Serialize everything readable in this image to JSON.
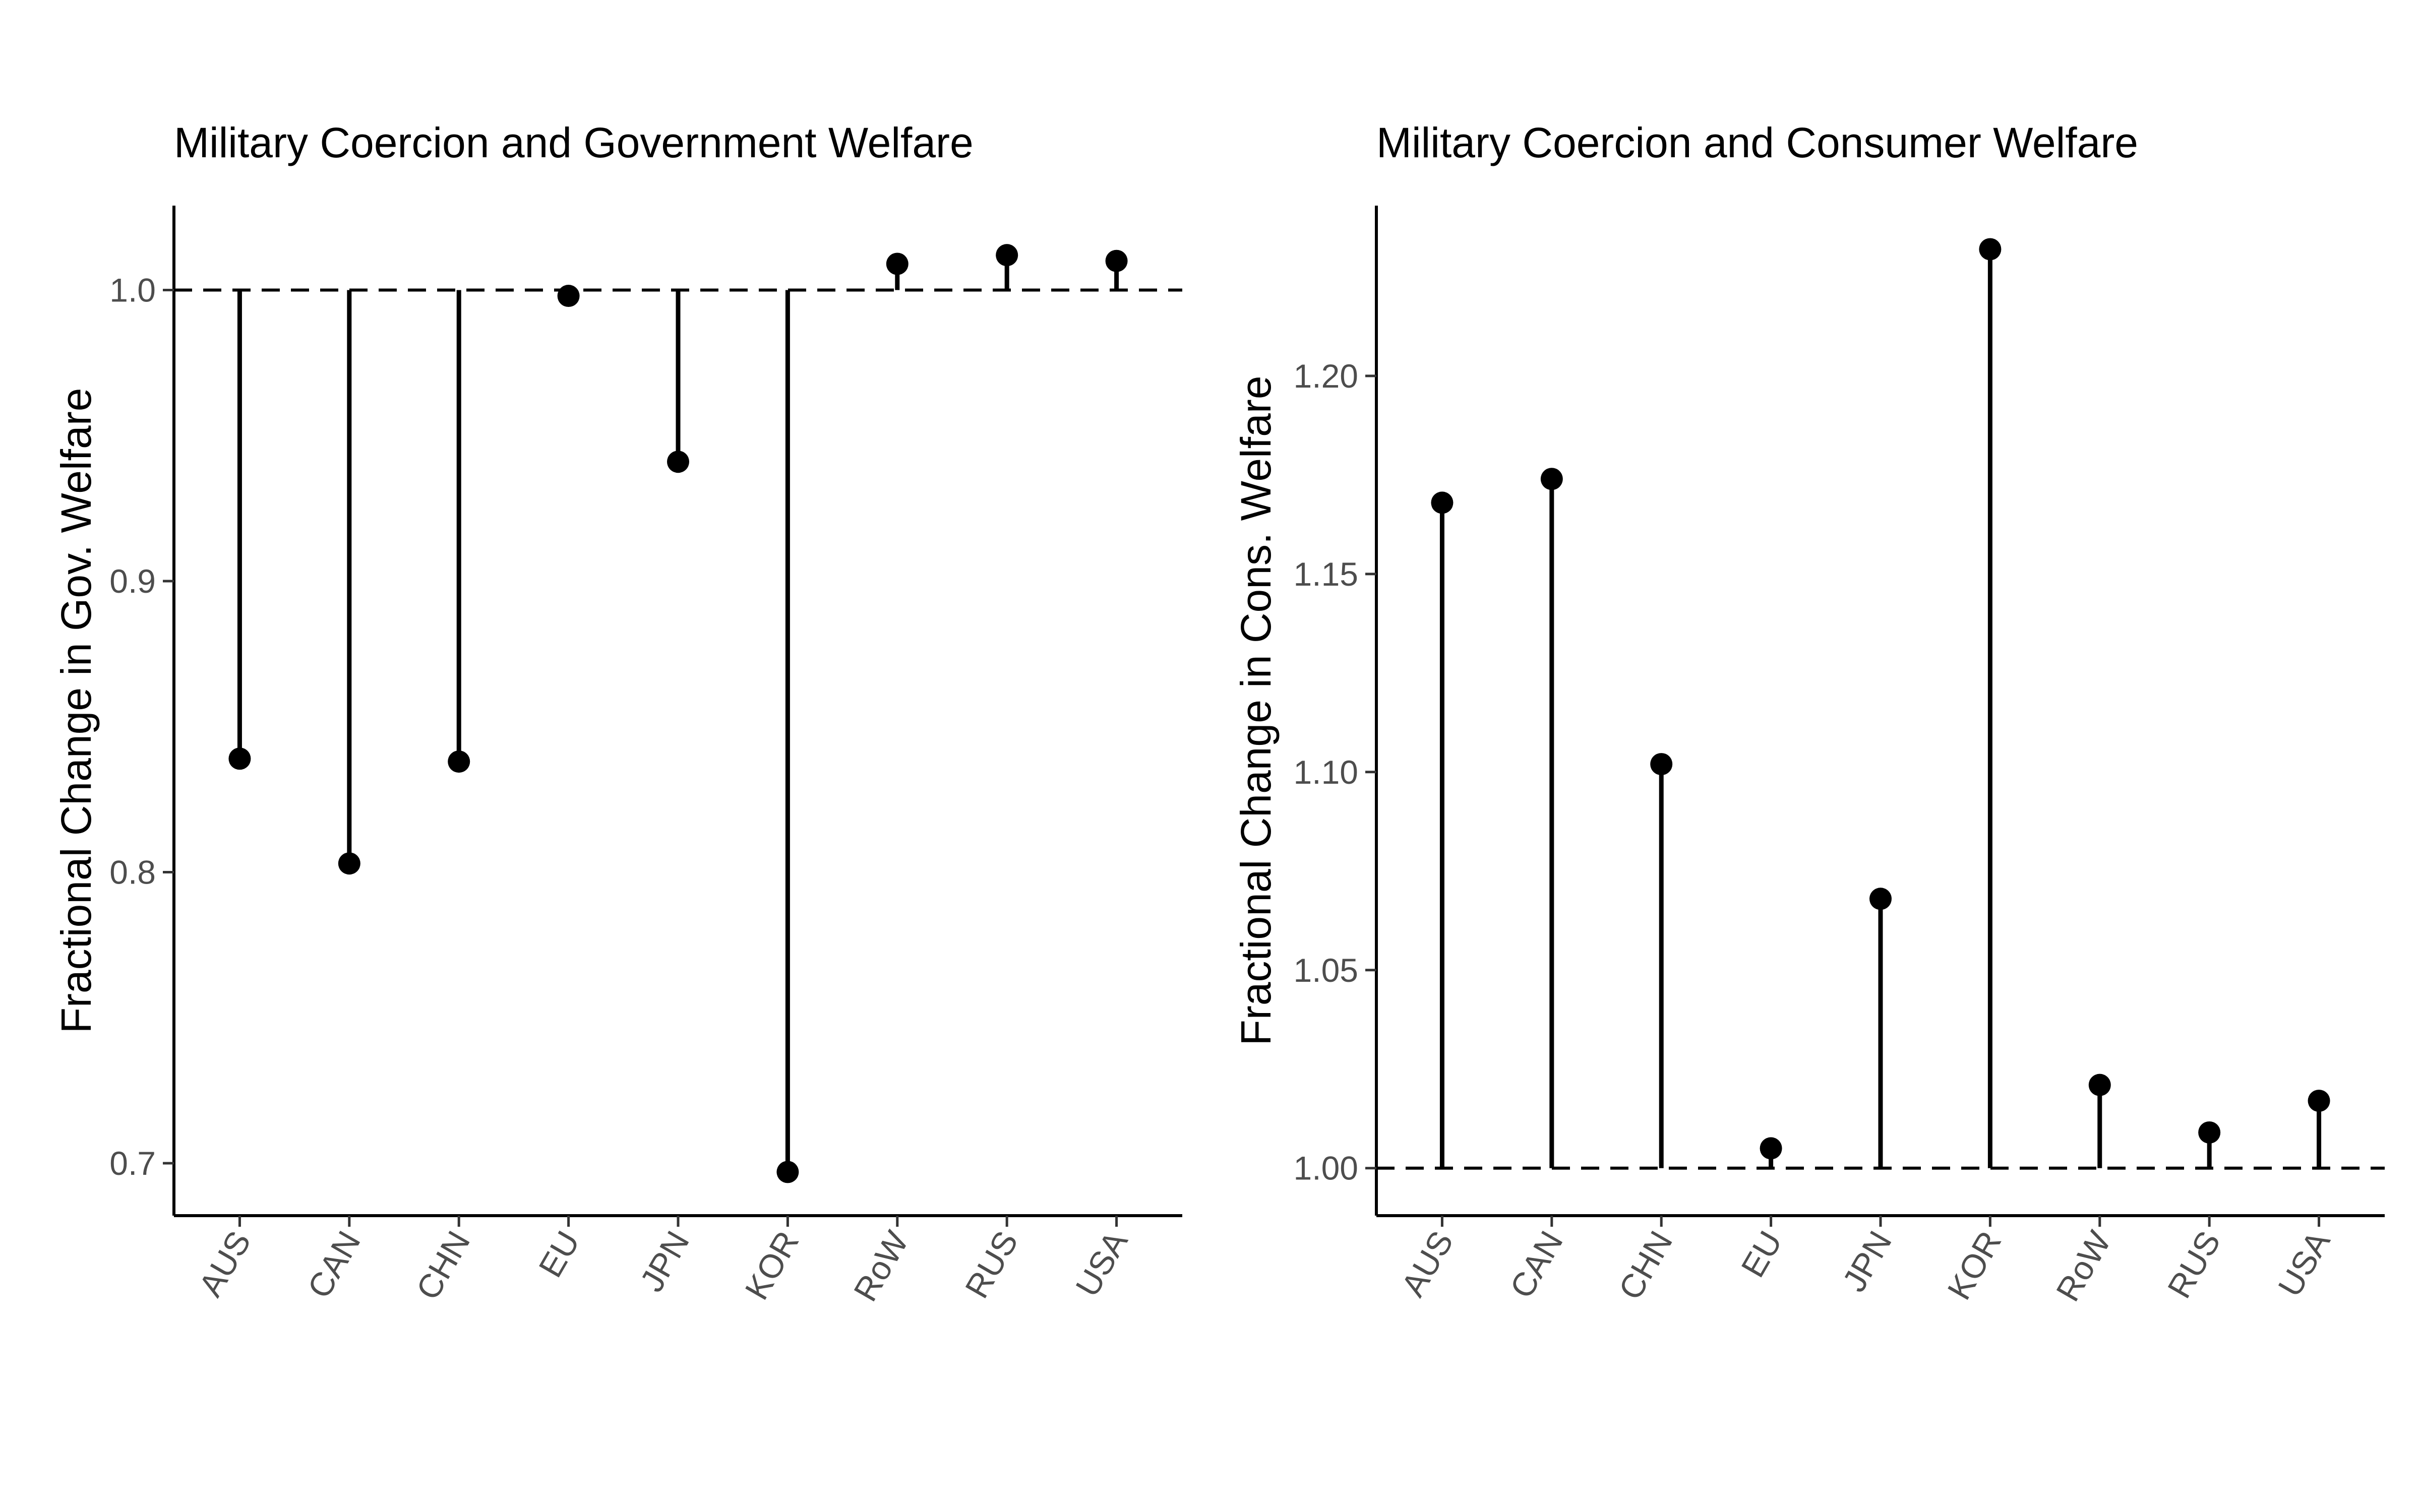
{
  "chart_data": [
    {
      "type": "lollipop",
      "title": "Military Coercion and Government Welfare",
      "xlabel": "",
      "ylabel": "Fractional Change in Gov. Welfare",
      "categories": [
        "AUS",
        "CAN",
        "CHN",
        "EU",
        "JPN",
        "KOR",
        "RoW",
        "RUS",
        "USA"
      ],
      "values": [
        0.839,
        0.803,
        0.838,
        0.998,
        0.941,
        0.697,
        1.009,
        1.012,
        1.01
      ],
      "baseline": 1.0,
      "ylim": [
        0.682,
        1.029
      ],
      "yticks": [
        0.7,
        0.8,
        0.9,
        1.0
      ],
      "ytick_labels": [
        "0.7",
        "0.8",
        "0.9",
        "1.0"
      ],
      "grid": false
    },
    {
      "type": "lollipop",
      "title": "Military Coercion and Consumer Welfare",
      "xlabel": "",
      "ylabel": "Fractional Change in Cons. Welfare",
      "categories": [
        "AUS",
        "CAN",
        "CHN",
        "EU",
        "JPN",
        "KOR",
        "RoW",
        "RUS",
        "USA"
      ],
      "values": [
        1.168,
        1.174,
        1.102,
        1.005,
        1.068,
        1.232,
        1.021,
        1.009,
        1.017
      ],
      "baseline": 1.0,
      "ylim": [
        0.988,
        1.243
      ],
      "yticks": [
        1.0,
        1.05,
        1.1,
        1.15,
        1.2
      ],
      "ytick_labels": [
        "1.00",
        "1.05",
        "1.10",
        "1.15",
        "1.20"
      ],
      "grid": false
    }
  ]
}
